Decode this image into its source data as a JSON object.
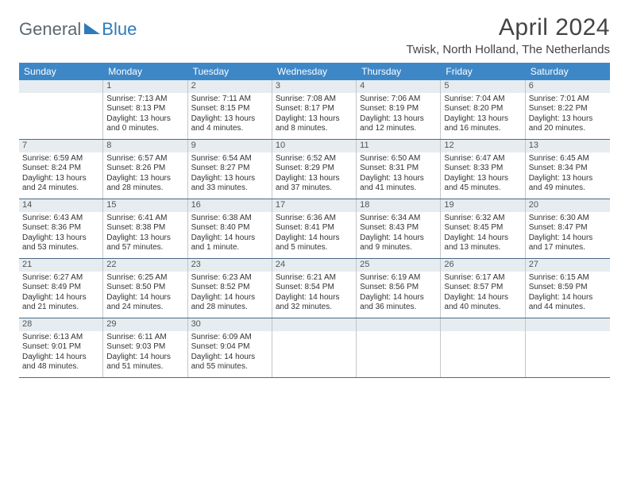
{
  "logo": {
    "text1": "General",
    "text2": "Blue"
  },
  "title": "April 2024",
  "location": "Twisk, North Holland, The Netherlands",
  "colors": {
    "header_bg": "#3d87c7",
    "header_text": "#ffffff",
    "daynum_bg": "#e6ecef",
    "row_border": "#4a6a85",
    "cell_border": "#bfc7cc",
    "logo_gray": "#5c6770",
    "logo_blue": "#2d7bbd"
  },
  "weekdays": [
    "Sunday",
    "Monday",
    "Tuesday",
    "Wednesday",
    "Thursday",
    "Friday",
    "Saturday"
  ],
  "weeks": [
    [
      {
        "n": "",
        "sunrise": "",
        "sunset": "",
        "daylight": ""
      },
      {
        "n": "1",
        "sunrise": "Sunrise: 7:13 AM",
        "sunset": "Sunset: 8:13 PM",
        "daylight": "Daylight: 13 hours and 0 minutes."
      },
      {
        "n": "2",
        "sunrise": "Sunrise: 7:11 AM",
        "sunset": "Sunset: 8:15 PM",
        "daylight": "Daylight: 13 hours and 4 minutes."
      },
      {
        "n": "3",
        "sunrise": "Sunrise: 7:08 AM",
        "sunset": "Sunset: 8:17 PM",
        "daylight": "Daylight: 13 hours and 8 minutes."
      },
      {
        "n": "4",
        "sunrise": "Sunrise: 7:06 AM",
        "sunset": "Sunset: 8:19 PM",
        "daylight": "Daylight: 13 hours and 12 minutes."
      },
      {
        "n": "5",
        "sunrise": "Sunrise: 7:04 AM",
        "sunset": "Sunset: 8:20 PM",
        "daylight": "Daylight: 13 hours and 16 minutes."
      },
      {
        "n": "6",
        "sunrise": "Sunrise: 7:01 AM",
        "sunset": "Sunset: 8:22 PM",
        "daylight": "Daylight: 13 hours and 20 minutes."
      }
    ],
    [
      {
        "n": "7",
        "sunrise": "Sunrise: 6:59 AM",
        "sunset": "Sunset: 8:24 PM",
        "daylight": "Daylight: 13 hours and 24 minutes."
      },
      {
        "n": "8",
        "sunrise": "Sunrise: 6:57 AM",
        "sunset": "Sunset: 8:26 PM",
        "daylight": "Daylight: 13 hours and 28 minutes."
      },
      {
        "n": "9",
        "sunrise": "Sunrise: 6:54 AM",
        "sunset": "Sunset: 8:27 PM",
        "daylight": "Daylight: 13 hours and 33 minutes."
      },
      {
        "n": "10",
        "sunrise": "Sunrise: 6:52 AM",
        "sunset": "Sunset: 8:29 PM",
        "daylight": "Daylight: 13 hours and 37 minutes."
      },
      {
        "n": "11",
        "sunrise": "Sunrise: 6:50 AM",
        "sunset": "Sunset: 8:31 PM",
        "daylight": "Daylight: 13 hours and 41 minutes."
      },
      {
        "n": "12",
        "sunrise": "Sunrise: 6:47 AM",
        "sunset": "Sunset: 8:33 PM",
        "daylight": "Daylight: 13 hours and 45 minutes."
      },
      {
        "n": "13",
        "sunrise": "Sunrise: 6:45 AM",
        "sunset": "Sunset: 8:34 PM",
        "daylight": "Daylight: 13 hours and 49 minutes."
      }
    ],
    [
      {
        "n": "14",
        "sunrise": "Sunrise: 6:43 AM",
        "sunset": "Sunset: 8:36 PM",
        "daylight": "Daylight: 13 hours and 53 minutes."
      },
      {
        "n": "15",
        "sunrise": "Sunrise: 6:41 AM",
        "sunset": "Sunset: 8:38 PM",
        "daylight": "Daylight: 13 hours and 57 minutes."
      },
      {
        "n": "16",
        "sunrise": "Sunrise: 6:38 AM",
        "sunset": "Sunset: 8:40 PM",
        "daylight": "Daylight: 14 hours and 1 minute."
      },
      {
        "n": "17",
        "sunrise": "Sunrise: 6:36 AM",
        "sunset": "Sunset: 8:41 PM",
        "daylight": "Daylight: 14 hours and 5 minutes."
      },
      {
        "n": "18",
        "sunrise": "Sunrise: 6:34 AM",
        "sunset": "Sunset: 8:43 PM",
        "daylight": "Daylight: 14 hours and 9 minutes."
      },
      {
        "n": "19",
        "sunrise": "Sunrise: 6:32 AM",
        "sunset": "Sunset: 8:45 PM",
        "daylight": "Daylight: 14 hours and 13 minutes."
      },
      {
        "n": "20",
        "sunrise": "Sunrise: 6:30 AM",
        "sunset": "Sunset: 8:47 PM",
        "daylight": "Daylight: 14 hours and 17 minutes."
      }
    ],
    [
      {
        "n": "21",
        "sunrise": "Sunrise: 6:27 AM",
        "sunset": "Sunset: 8:49 PM",
        "daylight": "Daylight: 14 hours and 21 minutes."
      },
      {
        "n": "22",
        "sunrise": "Sunrise: 6:25 AM",
        "sunset": "Sunset: 8:50 PM",
        "daylight": "Daylight: 14 hours and 24 minutes."
      },
      {
        "n": "23",
        "sunrise": "Sunrise: 6:23 AM",
        "sunset": "Sunset: 8:52 PM",
        "daylight": "Daylight: 14 hours and 28 minutes."
      },
      {
        "n": "24",
        "sunrise": "Sunrise: 6:21 AM",
        "sunset": "Sunset: 8:54 PM",
        "daylight": "Daylight: 14 hours and 32 minutes."
      },
      {
        "n": "25",
        "sunrise": "Sunrise: 6:19 AM",
        "sunset": "Sunset: 8:56 PM",
        "daylight": "Daylight: 14 hours and 36 minutes."
      },
      {
        "n": "26",
        "sunrise": "Sunrise: 6:17 AM",
        "sunset": "Sunset: 8:57 PM",
        "daylight": "Daylight: 14 hours and 40 minutes."
      },
      {
        "n": "27",
        "sunrise": "Sunrise: 6:15 AM",
        "sunset": "Sunset: 8:59 PM",
        "daylight": "Daylight: 14 hours and 44 minutes."
      }
    ],
    [
      {
        "n": "28",
        "sunrise": "Sunrise: 6:13 AM",
        "sunset": "Sunset: 9:01 PM",
        "daylight": "Daylight: 14 hours and 48 minutes."
      },
      {
        "n": "29",
        "sunrise": "Sunrise: 6:11 AM",
        "sunset": "Sunset: 9:03 PM",
        "daylight": "Daylight: 14 hours and 51 minutes."
      },
      {
        "n": "30",
        "sunrise": "Sunrise: 6:09 AM",
        "sunset": "Sunset: 9:04 PM",
        "daylight": "Daylight: 14 hours and 55 minutes."
      },
      {
        "n": "",
        "sunrise": "",
        "sunset": "",
        "daylight": ""
      },
      {
        "n": "",
        "sunrise": "",
        "sunset": "",
        "daylight": ""
      },
      {
        "n": "",
        "sunrise": "",
        "sunset": "",
        "daylight": ""
      },
      {
        "n": "",
        "sunrise": "",
        "sunset": "",
        "daylight": ""
      }
    ]
  ]
}
